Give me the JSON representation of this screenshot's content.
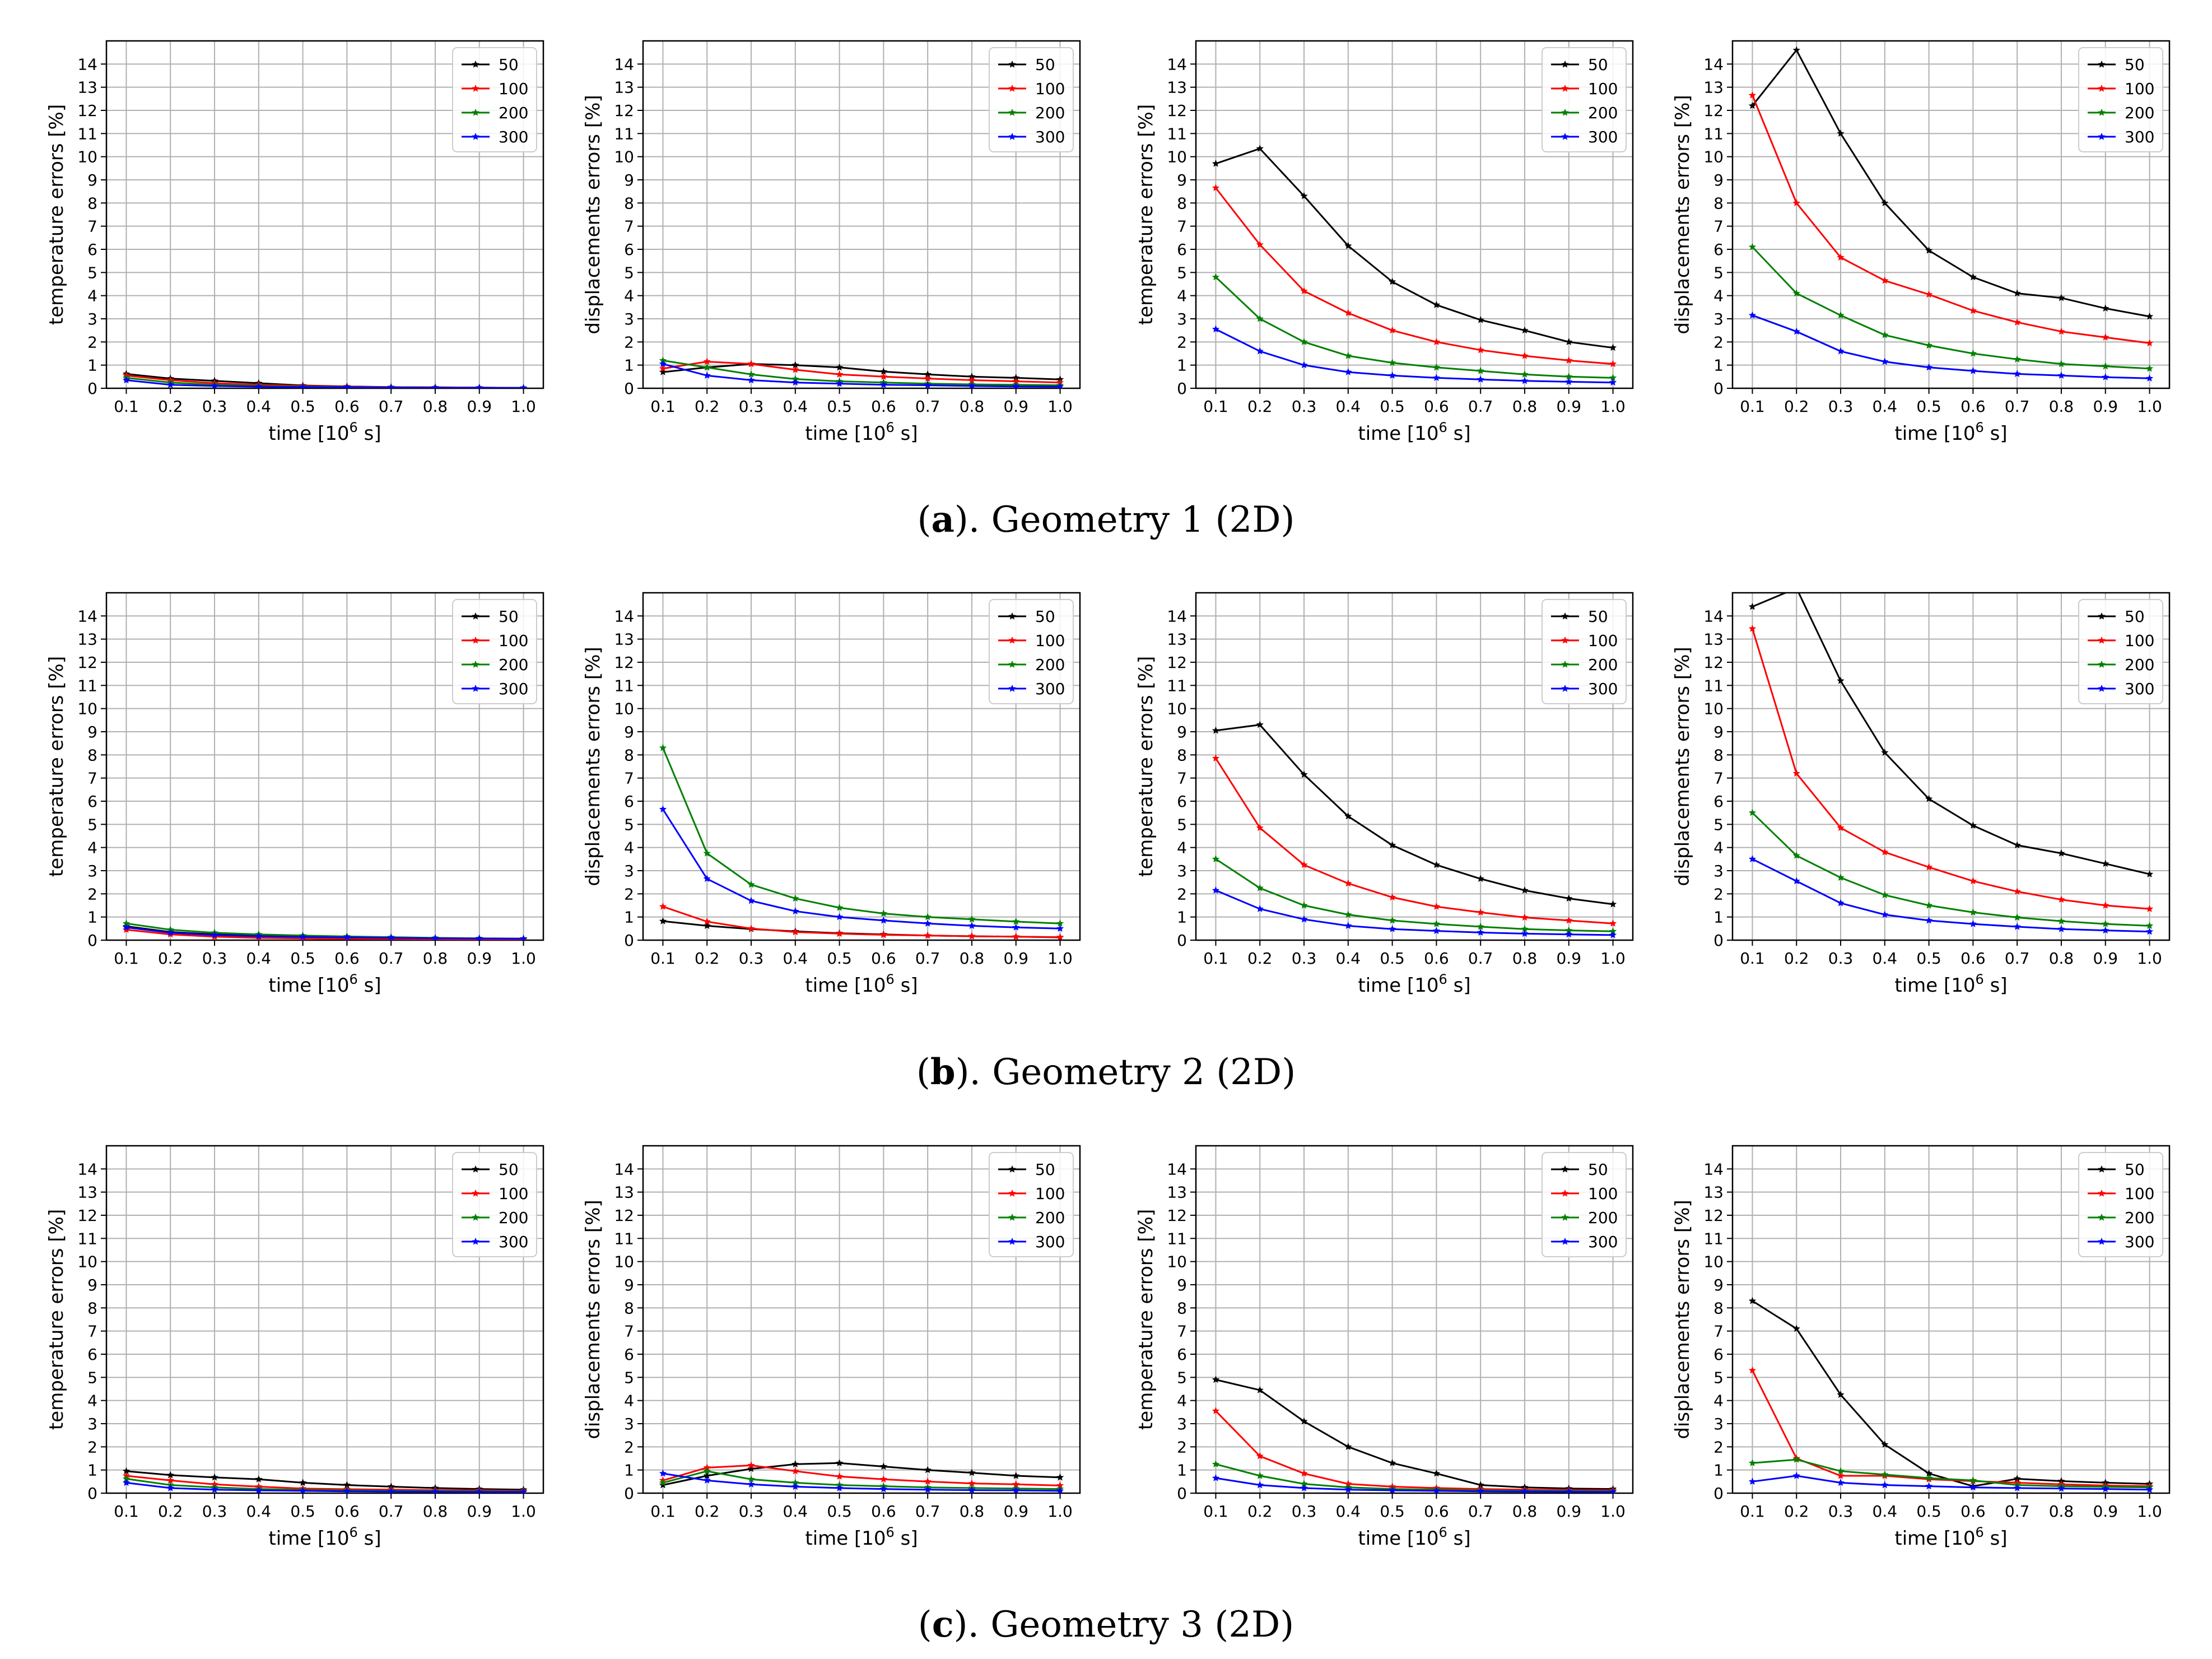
{
  "figure": {
    "rows": [
      {
        "caption_letter": "a",
        "caption_text": "Geometry 1 (2D)"
      },
      {
        "caption_letter": "b",
        "caption_text": "Geometry 2 (2D)"
      },
      {
        "caption_letter": "c",
        "caption_text": "Geometry 3 (2D)"
      }
    ],
    "caption_open": "(",
    "caption_close": ")."
  },
  "axes_common": {
    "xlabel": "time [10^6 s]",
    "x": [
      0.1,
      0.2,
      0.3,
      0.4,
      0.5,
      0.6,
      0.7,
      0.8,
      0.9,
      1.0
    ],
    "xticks": [
      "0.1",
      "0.2",
      "0.3",
      "0.4",
      "0.5",
      "0.6",
      "0.7",
      "0.8",
      "0.9",
      "1.0"
    ],
    "ylim": [
      0,
      15
    ],
    "yticks": [
      0,
      1,
      2,
      3,
      4,
      5,
      6,
      7,
      8,
      9,
      10,
      11,
      12,
      13,
      14
    ],
    "grid": true,
    "legend_position": "top-right",
    "series_names": [
      "50",
      "100",
      "200",
      "300"
    ],
    "series_colors": [
      "#000000",
      "#ff0000",
      "#008000",
      "#0000ff"
    ]
  },
  "chart_data": [
    {
      "type": "line",
      "row": "a",
      "ylabel": "temperature errors [%]",
      "series": [
        {
          "name": "50",
          "values": [
            0.62,
            0.42,
            0.32,
            0.22,
            0.12,
            0.08,
            0.05,
            0.04,
            0.03,
            0.02
          ]
        },
        {
          "name": "100",
          "values": [
            0.55,
            0.35,
            0.22,
            0.15,
            0.1,
            0.07,
            0.05,
            0.04,
            0.03,
            0.02
          ]
        },
        {
          "name": "200",
          "values": [
            0.45,
            0.25,
            0.15,
            0.1,
            0.07,
            0.05,
            0.04,
            0.03,
            0.02,
            0.02
          ]
        },
        {
          "name": "300",
          "values": [
            0.35,
            0.15,
            0.1,
            0.07,
            0.05,
            0.04,
            0.03,
            0.02,
            0.02,
            0.01
          ]
        }
      ]
    },
    {
      "type": "line",
      "row": "a",
      "ylabel": "displacements errors [%]",
      "series": [
        {
          "name": "50",
          "values": [
            0.7,
            0.9,
            1.05,
            1.0,
            0.9,
            0.72,
            0.6,
            0.5,
            0.45,
            0.38
          ]
        },
        {
          "name": "100",
          "values": [
            0.85,
            1.15,
            1.05,
            0.8,
            0.6,
            0.5,
            0.42,
            0.35,
            0.3,
            0.25
          ]
        },
        {
          "name": "200",
          "values": [
            1.2,
            0.9,
            0.6,
            0.4,
            0.3,
            0.25,
            0.2,
            0.17,
            0.15,
            0.13
          ]
        },
        {
          "name": "300",
          "values": [
            1.05,
            0.55,
            0.35,
            0.25,
            0.2,
            0.15,
            0.13,
            0.1,
            0.08,
            0.07
          ]
        }
      ]
    },
    {
      "type": "line",
      "row": "a",
      "ylabel": "temperature errors [%]",
      "series": [
        {
          "name": "50",
          "values": [
            9.7,
            10.35,
            8.3,
            6.15,
            4.6,
            3.6,
            2.95,
            2.5,
            2.0,
            1.75
          ]
        },
        {
          "name": "100",
          "values": [
            8.65,
            6.2,
            4.2,
            3.25,
            2.5,
            2.0,
            1.65,
            1.4,
            1.2,
            1.05
          ]
        },
        {
          "name": "200",
          "values": [
            4.8,
            3.0,
            2.0,
            1.4,
            1.1,
            0.9,
            0.75,
            0.6,
            0.5,
            0.45
          ]
        },
        {
          "name": "300",
          "values": [
            2.55,
            1.6,
            1.0,
            0.7,
            0.55,
            0.45,
            0.38,
            0.32,
            0.28,
            0.25
          ]
        }
      ]
    },
    {
      "type": "line",
      "row": "a",
      "ylabel": "displacements errors [%]",
      "series": [
        {
          "name": "50",
          "values": [
            12.2,
            14.6,
            11.0,
            8.0,
            5.95,
            4.8,
            4.1,
            3.9,
            3.45,
            3.1
          ]
        },
        {
          "name": "100",
          "values": [
            12.65,
            8.0,
            5.65,
            4.65,
            4.05,
            3.35,
            2.85,
            2.45,
            2.2,
            1.95
          ]
        },
        {
          "name": "200",
          "values": [
            6.1,
            4.1,
            3.15,
            2.3,
            1.85,
            1.5,
            1.25,
            1.05,
            0.95,
            0.85
          ]
        },
        {
          "name": "300",
          "values": [
            3.15,
            2.45,
            1.6,
            1.15,
            0.9,
            0.75,
            0.62,
            0.55,
            0.48,
            0.43
          ]
        }
      ]
    },
    {
      "type": "line",
      "row": "b",
      "ylabel": "temperature errors [%]",
      "series": [
        {
          "name": "50",
          "values": [
            0.6,
            0.35,
            0.25,
            0.2,
            0.15,
            0.12,
            0.1,
            0.08,
            0.06,
            0.05
          ]
        },
        {
          "name": "100",
          "values": [
            0.45,
            0.25,
            0.15,
            0.1,
            0.08,
            0.06,
            0.05,
            0.04,
            0.03,
            0.03
          ]
        },
        {
          "name": "200",
          "values": [
            0.72,
            0.45,
            0.32,
            0.25,
            0.2,
            0.16,
            0.13,
            0.1,
            0.08,
            0.07
          ]
        },
        {
          "name": "300",
          "values": [
            0.55,
            0.32,
            0.22,
            0.17,
            0.14,
            0.12,
            0.1,
            0.08,
            0.07,
            0.06
          ]
        }
      ]
    },
    {
      "type": "line",
      "row": "b",
      "ylabel": "displacements errors [%]",
      "series": [
        {
          "name": "50",
          "values": [
            0.82,
            0.62,
            0.48,
            0.38,
            0.3,
            0.25,
            0.2,
            0.17,
            0.15,
            0.12
          ]
        },
        {
          "name": "100",
          "values": [
            1.45,
            0.8,
            0.5,
            0.35,
            0.28,
            0.23,
            0.2,
            0.17,
            0.15,
            0.13
          ]
        },
        {
          "name": "200",
          "values": [
            8.3,
            3.75,
            2.4,
            1.8,
            1.4,
            1.15,
            1.0,
            0.9,
            0.8,
            0.72
          ]
        },
        {
          "name": "300",
          "values": [
            5.65,
            2.65,
            1.7,
            1.25,
            1.0,
            0.85,
            0.72,
            0.62,
            0.55,
            0.5
          ]
        }
      ]
    },
    {
      "type": "line",
      "row": "b",
      "ylabel": "temperature errors [%]",
      "series": [
        {
          "name": "50",
          "values": [
            9.05,
            9.3,
            7.15,
            5.35,
            4.1,
            3.25,
            2.65,
            2.15,
            1.8,
            1.55
          ]
        },
        {
          "name": "100",
          "values": [
            7.85,
            4.85,
            3.25,
            2.45,
            1.85,
            1.45,
            1.2,
            0.98,
            0.85,
            0.72
          ]
        },
        {
          "name": "200",
          "values": [
            3.5,
            2.25,
            1.5,
            1.1,
            0.85,
            0.7,
            0.58,
            0.48,
            0.42,
            0.38
          ]
        },
        {
          "name": "300",
          "values": [
            2.15,
            1.35,
            0.9,
            0.62,
            0.48,
            0.4,
            0.33,
            0.28,
            0.25,
            0.22
          ]
        }
      ]
    },
    {
      "type": "line",
      "row": "b",
      "ylabel": "displacements errors [%]",
      "series": [
        {
          "name": "50",
          "values": [
            14.4,
            15.2,
            11.2,
            8.1,
            6.1,
            4.95,
            4.1,
            3.75,
            3.3,
            2.85
          ]
        },
        {
          "name": "100",
          "values": [
            13.45,
            7.2,
            4.85,
            3.8,
            3.15,
            2.55,
            2.1,
            1.75,
            1.5,
            1.35
          ]
        },
        {
          "name": "200",
          "values": [
            5.5,
            3.65,
            2.7,
            1.95,
            1.5,
            1.2,
            0.98,
            0.82,
            0.7,
            0.62
          ]
        },
        {
          "name": "300",
          "values": [
            3.5,
            2.55,
            1.6,
            1.1,
            0.85,
            0.7,
            0.58,
            0.48,
            0.42,
            0.37
          ]
        }
      ]
    },
    {
      "type": "line",
      "row": "c",
      "ylabel": "temperature errors [%]",
      "series": [
        {
          "name": "50",
          "values": [
            0.95,
            0.78,
            0.68,
            0.6,
            0.45,
            0.35,
            0.28,
            0.22,
            0.18,
            0.15
          ]
        },
        {
          "name": "100",
          "values": [
            0.75,
            0.55,
            0.38,
            0.28,
            0.2,
            0.17,
            0.15,
            0.13,
            0.12,
            0.1
          ]
        },
        {
          "name": "200",
          "values": [
            0.62,
            0.35,
            0.25,
            0.18,
            0.14,
            0.12,
            0.1,
            0.09,
            0.08,
            0.07
          ]
        },
        {
          "name": "300",
          "values": [
            0.45,
            0.22,
            0.15,
            0.12,
            0.1,
            0.08,
            0.07,
            0.06,
            0.05,
            0.05
          ]
        }
      ]
    },
    {
      "type": "line",
      "row": "c",
      "ylabel": "displacements errors [%]",
      "series": [
        {
          "name": "50",
          "values": [
            0.35,
            0.75,
            1.05,
            1.25,
            1.3,
            1.15,
            1.0,
            0.88,
            0.75,
            0.68
          ]
        },
        {
          "name": "100",
          "values": [
            0.55,
            1.1,
            1.2,
            0.95,
            0.72,
            0.6,
            0.5,
            0.42,
            0.38,
            0.33
          ]
        },
        {
          "name": "200",
          "values": [
            0.45,
            0.95,
            0.6,
            0.45,
            0.35,
            0.3,
            0.25,
            0.22,
            0.2,
            0.18
          ]
        },
        {
          "name": "300",
          "values": [
            0.85,
            0.55,
            0.38,
            0.28,
            0.22,
            0.18,
            0.15,
            0.13,
            0.12,
            0.1
          ]
        }
      ]
    },
    {
      "type": "line",
      "row": "c",
      "ylabel": "temperature errors [%]",
      "series": [
        {
          "name": "50",
          "values": [
            4.9,
            4.45,
            3.1,
            2.0,
            1.3,
            0.85,
            0.35,
            0.25,
            0.2,
            0.18
          ]
        },
        {
          "name": "100",
          "values": [
            3.55,
            1.6,
            0.85,
            0.4,
            0.28,
            0.22,
            0.18,
            0.15,
            0.13,
            0.12
          ]
        },
        {
          "name": "200",
          "values": [
            1.25,
            0.75,
            0.4,
            0.25,
            0.18,
            0.15,
            0.12,
            0.1,
            0.09,
            0.08
          ]
        },
        {
          "name": "300",
          "values": [
            0.65,
            0.35,
            0.22,
            0.15,
            0.12,
            0.1,
            0.08,
            0.07,
            0.06,
            0.05
          ]
        }
      ]
    },
    {
      "type": "line",
      "row": "c",
      "ylabel": "displacements errors [%]",
      "series": [
        {
          "name": "50",
          "values": [
            8.3,
            7.1,
            4.25,
            2.1,
            0.85,
            0.3,
            0.62,
            0.52,
            0.45,
            0.4
          ]
        },
        {
          "name": "100",
          "values": [
            5.3,
            1.5,
            0.75,
            0.75,
            0.6,
            0.52,
            0.45,
            0.38,
            0.33,
            0.3
          ]
        },
        {
          "name": "200",
          "values": [
            1.3,
            1.45,
            0.95,
            0.8,
            0.65,
            0.55,
            0.35,
            0.3,
            0.27,
            0.25
          ]
        },
        {
          "name": "300",
          "values": [
            0.5,
            0.75,
            0.45,
            0.35,
            0.3,
            0.25,
            0.22,
            0.2,
            0.18,
            0.15
          ]
        }
      ]
    }
  ]
}
